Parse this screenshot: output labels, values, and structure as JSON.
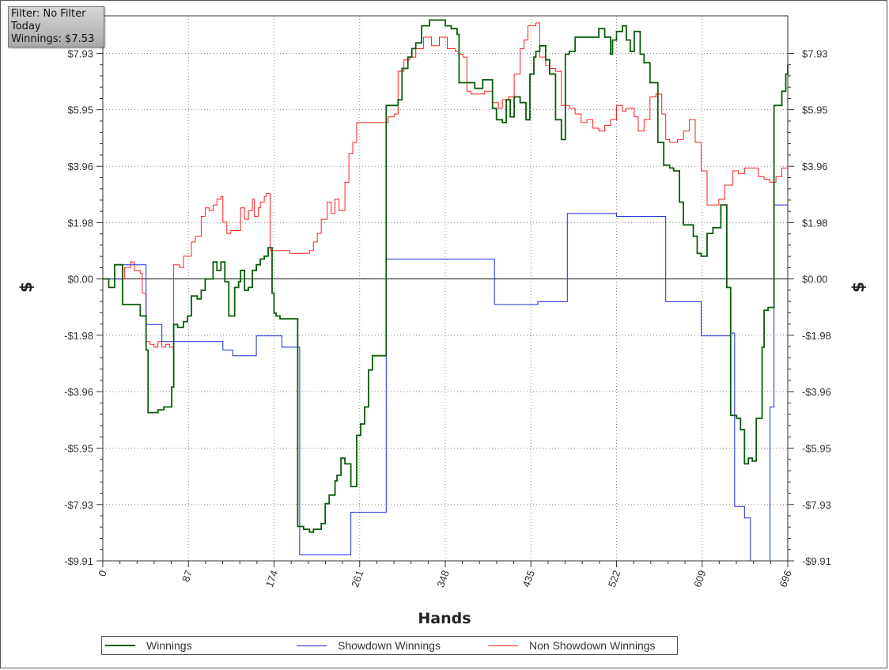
{
  "info": {
    "filter": "Filter: No Filter",
    "period": "Today",
    "winnings": "Winnings: $7.53"
  },
  "chart_data": {
    "type": "line",
    "xlabel": "Hands",
    "ylabel": "$",
    "xlim": [
      0,
      696
    ],
    "ylim": [
      -9.91,
      9.25
    ],
    "xticks": [
      0,
      87,
      174,
      261,
      348,
      435,
      522,
      609,
      696
    ],
    "yticks": [
      -9.91,
      -7.93,
      -5.95,
      -3.96,
      -1.98,
      0,
      1.98,
      3.96,
      5.95,
      7.93
    ],
    "ytick_labels": [
      "-$9.91",
      "-$7.93",
      "-$5.95",
      "-$3.96",
      "-$1.98",
      "$0.00",
      "$1.98",
      "$3.96",
      "$5.95",
      "$7.93"
    ],
    "grid": true,
    "legend_position": "bottom",
    "series": [
      {
        "name": "Winnings",
        "color": "#0a5c0a",
        "x": [
          0,
          6,
          10,
          12,
          18,
          20,
          30,
          38,
          44,
          46,
          50,
          56,
          62,
          66,
          70,
          72,
          76,
          82,
          86,
          90,
          96,
          100,
          104,
          108,
          112,
          116,
          120,
          124,
          128,
          132,
          134,
          138,
          140,
          144,
          148,
          152,
          156,
          160,
          164,
          168,
          172,
          174,
          176,
          180,
          190,
          198,
          200,
          204,
          210,
          214,
          222,
          226,
          230,
          236,
          238,
          242,
          246,
          252,
          258,
          262,
          266,
          270,
          274,
          286,
          288,
          296,
          300,
          304,
          310,
          314,
          318,
          324,
          328,
          332,
          340,
          348,
          354,
          360,
          362,
          366,
          370,
          378,
          386,
          396,
          400,
          406,
          410,
          414,
          418,
          424,
          430,
          434,
          438,
          440,
          444,
          450,
          454,
          460,
          466,
          470,
          474,
          480,
          488,
          496,
          504,
          510,
          516,
          518,
          522,
          528,
          532,
          536,
          540,
          542,
          546,
          550,
          556,
          560,
          564,
          570,
          572,
          576,
          580,
          586,
          590,
          594,
          600,
          604,
          608,
          614,
          620,
          628,
          632,
          634,
          638,
          640,
          644,
          648,
          652,
          656,
          660,
          664,
          668,
          670,
          672,
          676,
          682,
          686,
          690,
          694,
          696
        ],
        "y": [
          0,
          -0.3,
          -0.3,
          0.5,
          0.5,
          -0.9,
          -0.9,
          -1.3,
          -2.5,
          -4.7,
          -4.7,
          -4.6,
          -4.5,
          -4.5,
          -3.8,
          -1.6,
          -1.7,
          -1.5,
          -1.3,
          -0.6,
          -0.7,
          -0.4,
          0,
          0,
          0.6,
          0.3,
          0.6,
          -0.1,
          -1.3,
          -1.3,
          -0.3,
          -0.1,
          0.3,
          -0.4,
          -0.3,
          0.3,
          0.5,
          0.7,
          0.8,
          1.1,
          -0.5,
          -1.2,
          -1.3,
          -1.4,
          -1.4,
          -8.7,
          -8.7,
          -8.8,
          -8.9,
          -8.8,
          -8.6,
          -7.9,
          -7.6,
          -7.1,
          -6.9,
          -6.3,
          -6.5,
          -7.3,
          -5.5,
          -5.1,
          -4.5,
          -3.2,
          -2.7,
          -2.7,
          6.1,
          6.1,
          6.3,
          7.4,
          7.8,
          8.1,
          8.3,
          8.9,
          8.9,
          9.1,
          9.1,
          8.9,
          8.8,
          8.6,
          6.9,
          6.9,
          6.9,
          6.7,
          7.0,
          6.0,
          5.6,
          5.5,
          6.3,
          5.7,
          6.4,
          6.2,
          5.6,
          7.2,
          7.8,
          8.0,
          8.2,
          7.7,
          7.2,
          5.6,
          4.9,
          7.9,
          8.0,
          8.5,
          8.5,
          8.5,
          8.8,
          8.5,
          7.9,
          8.4,
          8.7,
          8.9,
          8.4,
          8.0,
          8.7,
          8.7,
          7.9,
          7.6,
          6.9,
          6.9,
          4.8,
          4.0,
          4.0,
          3.9,
          3.8,
          2.7,
          1.9,
          1.9,
          1.5,
          0.9,
          0.8,
          1.6,
          1.8,
          2.6,
          2.6,
          -0.3,
          -4.8,
          -4.8,
          -4.9,
          -5.3,
          -6.5,
          -6.3,
          -6.4,
          -4.9,
          -4.9,
          -2.4,
          -1.1,
          -1.0,
          6.1,
          6.1,
          6.6,
          7.2,
          7.53
        ]
      },
      {
        "name": "Showdown Winnings",
        "color": "#1a2bd6",
        "x": [
          0,
          10,
          18,
          20,
          44,
          46,
          58,
          60,
          120,
          122,
          130,
          132,
          154,
          156,
          180,
          182,
          198,
          200,
          250,
          252,
          286,
          288,
          396,
          398,
          440,
          442,
          470,
          472,
          520,
          522,
          570,
          572,
          606,
          608,
          636,
          638,
          640,
          642,
          650,
          652,
          656,
          658,
          676,
          678,
          680,
          682,
          694,
          696
        ],
        "y": [
          0,
          0,
          0,
          0.5,
          -1.6,
          -1.6,
          -1.6,
          -2.2,
          -2.2,
          -2.5,
          -2.5,
          -2.7,
          -2.7,
          -2.0,
          -2.0,
          -2.4,
          -2.4,
          -9.7,
          -9.7,
          -8.2,
          -8.2,
          0.7,
          0.7,
          -0.9,
          -0.9,
          -0.8,
          -0.8,
          2.3,
          2.3,
          2.2,
          2.2,
          -0.8,
          -0.8,
          -2.0,
          -2.0,
          -1.9,
          -1.9,
          -8.0,
          -8.0,
          -8.4,
          -8.4,
          -9.91,
          -9.91,
          -4.5,
          -4.5,
          2.6,
          2.6,
          3.2
        ]
      },
      {
        "name": "Non Showdown Winnings",
        "color": "#ff1f1f",
        "x": [
          0,
          10,
          14,
          18,
          22,
          28,
          32,
          38,
          40,
          44,
          48,
          52,
          56,
          60,
          64,
          68,
          72,
          78,
          82,
          86,
          90,
          94,
          100,
          104,
          108,
          112,
          116,
          120,
          122,
          126,
          130,
          134,
          140,
          144,
          148,
          152,
          154,
          158,
          160,
          164,
          166,
          170,
          174,
          180,
          190,
          200,
          210,
          214,
          218,
          222,
          228,
          232,
          236,
          240,
          246,
          250,
          254,
          258,
          262,
          270,
          276,
          282,
          286,
          290,
          296,
          300,
          306,
          312,
          318,
          326,
          334,
          342,
          350,
          358,
          362,
          366,
          370,
          374,
          382,
          388,
          396,
          402,
          406,
          412,
          418,
          424,
          428,
          432,
          436,
          440,
          444,
          450,
          454,
          460,
          466,
          470,
          474,
          480,
          486,
          492,
          498,
          504,
          510,
          516,
          522,
          528,
          532,
          536,
          540,
          544,
          550,
          556,
          562,
          568,
          572,
          576,
          580,
          584,
          590,
          596,
          602,
          608,
          614,
          620,
          626,
          632,
          640,
          646,
          652,
          660,
          666,
          672,
          678,
          684,
          690,
          696
        ],
        "y": [
          0,
          0,
          0,
          0,
          0.4,
          0.6,
          0.3,
          0.2,
          -0.5,
          -2.2,
          -2.3,
          -2.4,
          -2.2,
          -2.4,
          -2.3,
          -2.4,
          0.5,
          0.4,
          0.8,
          0.8,
          1.3,
          1.5,
          2.2,
          2.5,
          2.4,
          2.6,
          2.8,
          2.9,
          2.0,
          1.6,
          1.7,
          1.7,
          2.5,
          2.1,
          2.4,
          2.8,
          2.2,
          2.5,
          2.7,
          2.9,
          3.0,
          1.0,
          1.0,
          1.0,
          0.9,
          0.9,
          1.0,
          1.3,
          1.6,
          2.1,
          2.7,
          2.3,
          2.8,
          2.4,
          3.4,
          4.4,
          4.8,
          5.5,
          5.5,
          5.5,
          5.5,
          5.5,
          5.5,
          5.7,
          5.8,
          7.3,
          7.7,
          7.8,
          8.1,
          8.5,
          8.2,
          8.5,
          8.1,
          8.0,
          7.9,
          7.8,
          6.6,
          6.5,
          6.5,
          6.6,
          6.2,
          6.0,
          6.3,
          6.4,
          7.2,
          8.1,
          8.4,
          8.9,
          8.9,
          9.0,
          7.8,
          7.5,
          7.4,
          7.3,
          6.1,
          6.1,
          6.0,
          5.8,
          5.5,
          5.6,
          5.3,
          5.2,
          5.4,
          5.6,
          6.1,
          5.9,
          6.0,
          6.0,
          5.7,
          5.2,
          5.6,
          6.4,
          6.5,
          5.8,
          4.9,
          4.8,
          4.8,
          4.9,
          5.2,
          5.6,
          4.8,
          3.8,
          2.6,
          2.6,
          2.8,
          3.3,
          3.8,
          3.7,
          3.9,
          3.9,
          3.6,
          3.5,
          3.4,
          3.6,
          3.9,
          3.9
        ]
      }
    ]
  }
}
